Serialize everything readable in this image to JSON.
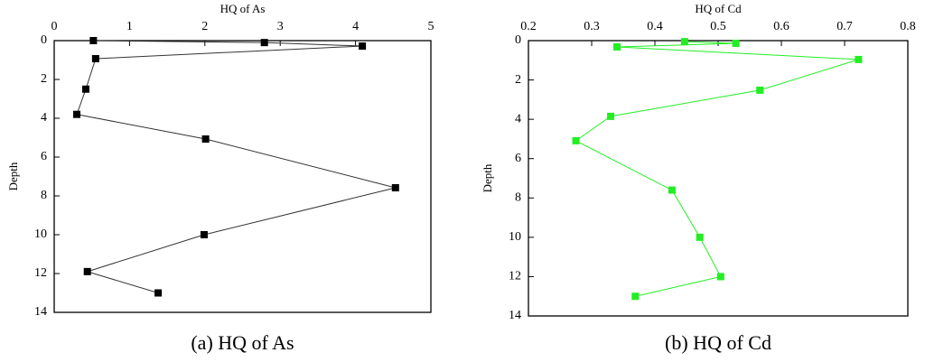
{
  "chart_data": [
    {
      "type": "line",
      "title": "HQ of As",
      "xlabel": "HQ of As",
      "ylabel": "Depth",
      "caption": "(a) HQ of As",
      "x": [
        0.52,
        2.79,
        4.09,
        0.55,
        0.42,
        0.3,
        2.01,
        4.53,
        1.99,
        0.44,
        1.38
      ],
      "series": [
        {
          "name": "HQ of As",
          "color": "#000000",
          "values": [
            0,
            0.1,
            0.28,
            0.93,
            2.5,
            3.8,
            5.07,
            7.58,
            10,
            11.9,
            13
          ]
        }
      ],
      "xlim": [
        0,
        5
      ],
      "xticks": [
        0,
        1,
        2,
        3,
        4,
        5
      ],
      "ylim": [
        0,
        14
      ],
      "yticks": [
        0,
        2,
        4,
        6,
        8,
        10,
        12,
        14
      ],
      "y_inverted": true
    },
    {
      "type": "line",
      "title": "HQ of Cd",
      "xlabel": "HQ of Cd",
      "ylabel": "Depth",
      "caption": "(b) HQ of Cd",
      "x": [
        0.447,
        0.528,
        0.34,
        0.722,
        0.566,
        0.33,
        0.275,
        0.427,
        0.471,
        0.504,
        0.369
      ],
      "series": [
        {
          "name": "HQ of Cd",
          "color": "#22ee22",
          "values": [
            0.05,
            0.14,
            0.32,
            0.96,
            2.52,
            3.85,
            5.09,
            7.6,
            10,
            12,
            13
          ]
        }
      ],
      "xlim": [
        0.2,
        0.8
      ],
      "xticks": [
        0.2,
        0.3,
        0.4,
        0.5,
        0.6,
        0.7,
        0.8
      ],
      "ylim": [
        0,
        14
      ],
      "yticks": [
        0,
        2,
        4,
        6,
        8,
        10,
        12,
        14
      ],
      "y_inverted": true
    }
  ]
}
